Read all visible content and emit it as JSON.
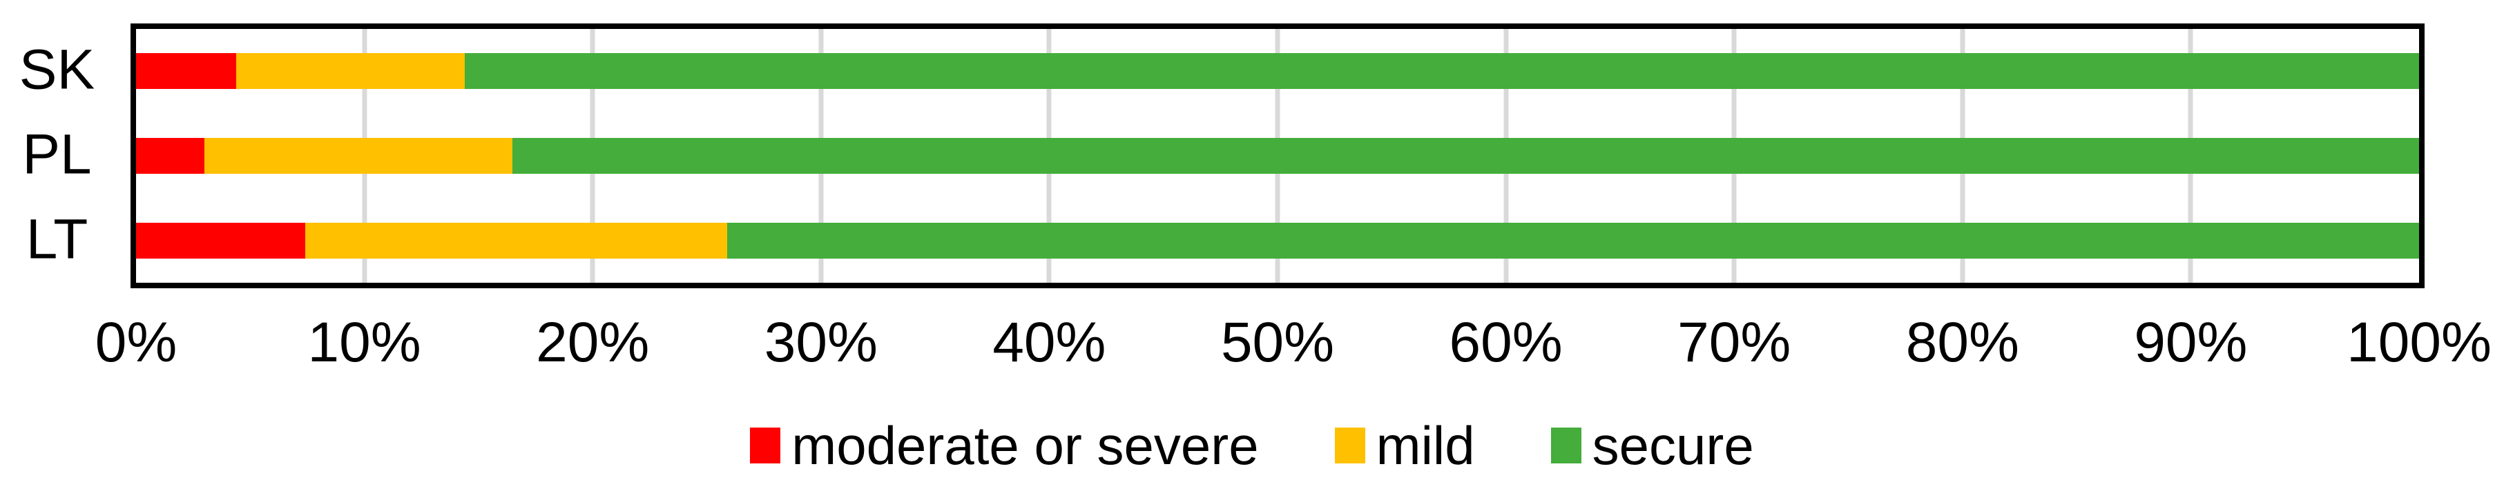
{
  "figure": {
    "background_color": "#FFFFFF",
    "plot_border_color": "#000000",
    "gridline_color": "#D9D9D9",
    "text_color": "#000000"
  },
  "chart_data": {
    "type": "bar",
    "orientation": "horizontal",
    "stacked": true,
    "title": "",
    "xlabel": "",
    "ylabel": "",
    "categories": [
      "SK",
      "PL",
      "LT"
    ],
    "series": [
      {
        "name": "moderate or severe",
        "color": "#FF0000",
        "values": [
          4.4,
          3.0,
          7.4
        ]
      },
      {
        "name": "mild",
        "color": "#FFC000",
        "values": [
          10.0,
          13.5,
          18.5
        ]
      },
      {
        "name": "secure",
        "color": "#44AD3B",
        "values": [
          85.6,
          83.5,
          74.1
        ]
      }
    ],
    "xlim": [
      0,
      100
    ],
    "x_tick_labels": [
      "0%",
      "10%",
      "20%",
      "30%",
      "40%",
      "50%",
      "60%",
      "70%",
      "80%",
      "90%",
      "100%"
    ],
    "grid": true,
    "legend_position": "bottom"
  }
}
